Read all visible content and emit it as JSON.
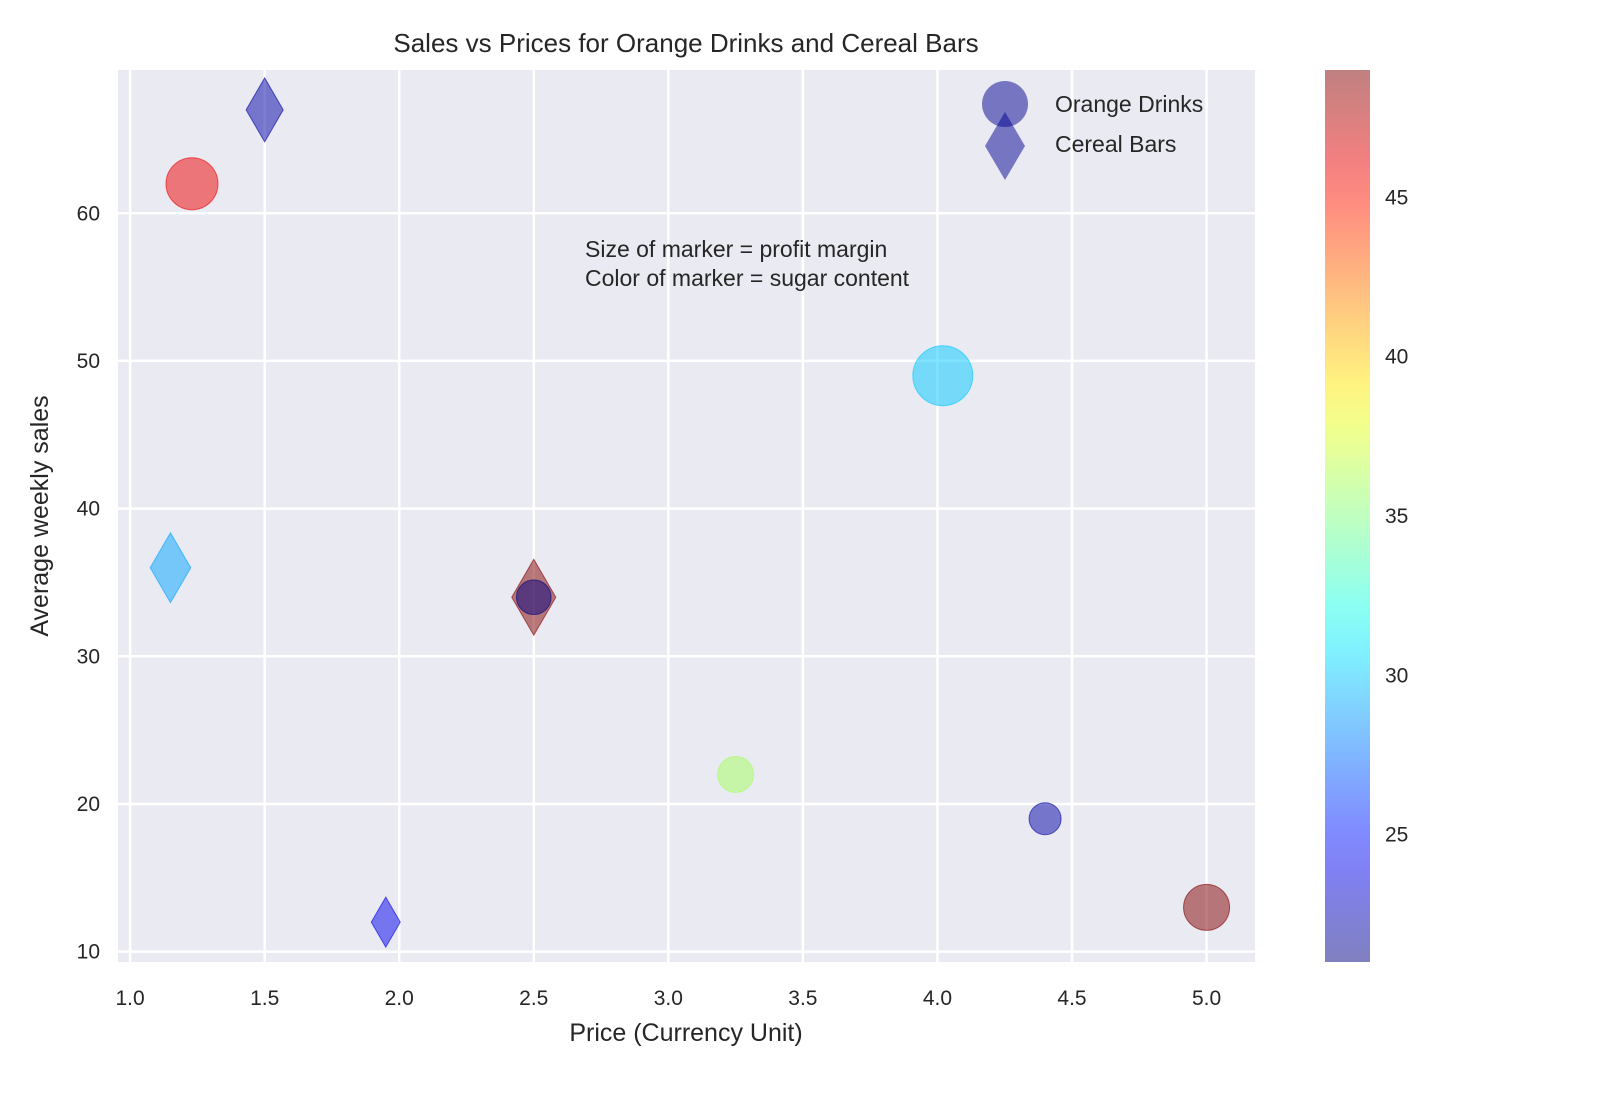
{
  "chart_data": {
    "type": "scatter",
    "title": "Sales vs Prices for Orange Drinks and Cereal Bars",
    "xlabel": "Price (Currency Unit)",
    "ylabel": "Average weekly sales",
    "xlim": [
      0.955,
      5.18
    ],
    "ylim": [
      9.3,
      69.7
    ],
    "xticks": [
      "1.0",
      "1.5",
      "2.0",
      "2.5",
      "3.0",
      "3.5",
      "4.0",
      "4.5",
      "5.0"
    ],
    "yticks": [
      "10",
      "20",
      "30",
      "40",
      "50",
      "60"
    ],
    "grid": true,
    "background": "#eaeaf2",
    "legend_position": "top-right",
    "annotation": [
      "Size of marker = profit margin",
      "Color of marker = sugar content"
    ],
    "colorbar": {
      "colormap": "jet",
      "range": [
        21,
        49
      ],
      "ticks": [
        "25",
        "30",
        "35",
        "40",
        "45"
      ]
    },
    "alpha": 0.5,
    "series": [
      {
        "name": "Orange Drinks",
        "marker": "circle",
        "legend_color": "#00008f",
        "points": [
          {
            "x": 1.23,
            "y": 62,
            "color_value": 46,
            "size": 676
          },
          {
            "x": 4.02,
            "y": 49,
            "color_value": 30,
            "size": 900
          },
          {
            "x": 2.5,
            "y": 34,
            "color_value": 21,
            "size": 300
          },
          {
            "x": 3.25,
            "y": 22,
            "color_value": 36,
            "size": 324
          },
          {
            "x": 4.4,
            "y": 19,
            "color_value": 22,
            "size": 256
          },
          {
            "x": 5.0,
            "y": 13,
            "color_value": 49,
            "size": 529
          }
        ]
      },
      {
        "name": "Cereal Bars",
        "marker": "thin-diamond",
        "legend_color": "#00008f",
        "points": [
          {
            "x": 1.5,
            "y": 67,
            "color_value": 22,
            "size": 1024
          },
          {
            "x": 1.15,
            "y": 36,
            "color_value": 29,
            "size": 1225
          },
          {
            "x": 2.5,
            "y": 34,
            "color_value": 49,
            "size": 1444
          },
          {
            "x": 1.95,
            "y": 12,
            "color_value": 24,
            "size": 625
          }
        ]
      }
    ]
  }
}
